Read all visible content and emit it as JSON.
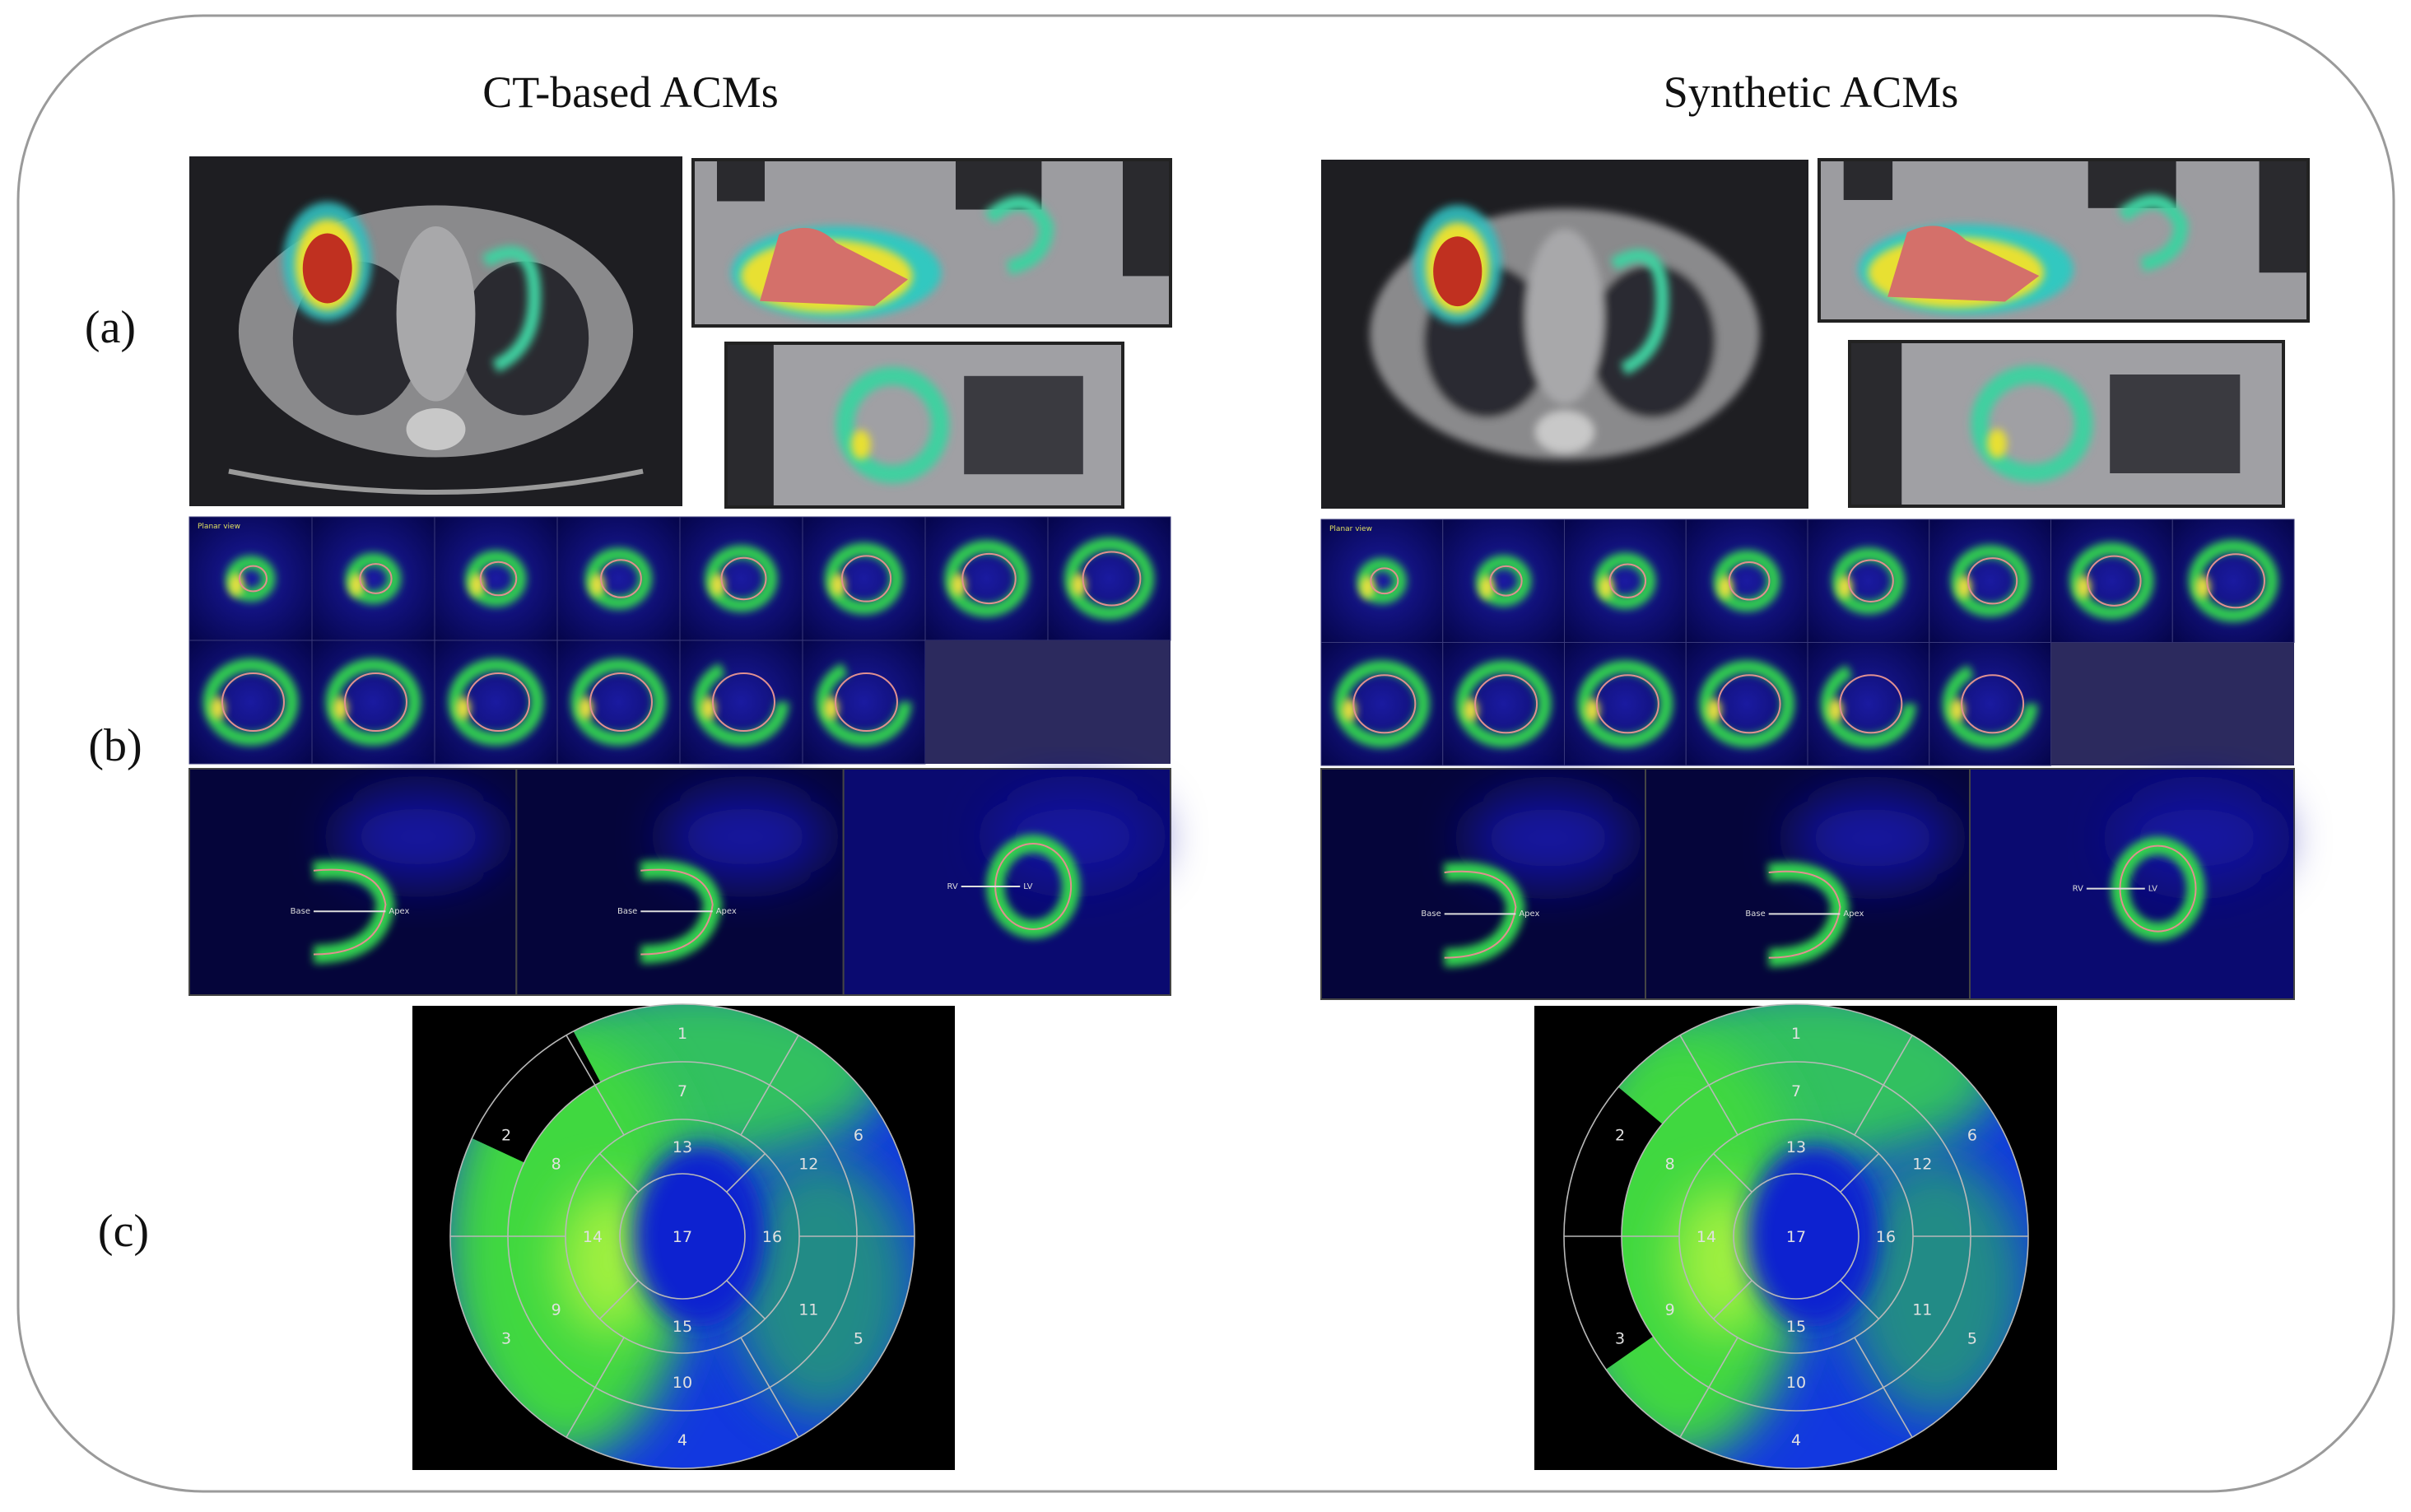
{
  "panels": [
    {
      "title": "CT-based ACMs"
    },
    {
      "title": "Synthetic ACMs"
    }
  ],
  "row_labels": [
    "(a)",
    "(b)",
    "(c)"
  ],
  "grid_label": "Planar view",
  "long_axis_labels": [
    "Base",
    "Apex"
  ],
  "short_axis_labels": [
    "RV",
    "LV"
  ],
  "bullseye_segments": [
    "1",
    "2",
    "3",
    "4",
    "5",
    "6",
    "7",
    "8",
    "9",
    "10",
    "11",
    "12",
    "13",
    "14",
    "15",
    "16",
    "17"
  ]
}
